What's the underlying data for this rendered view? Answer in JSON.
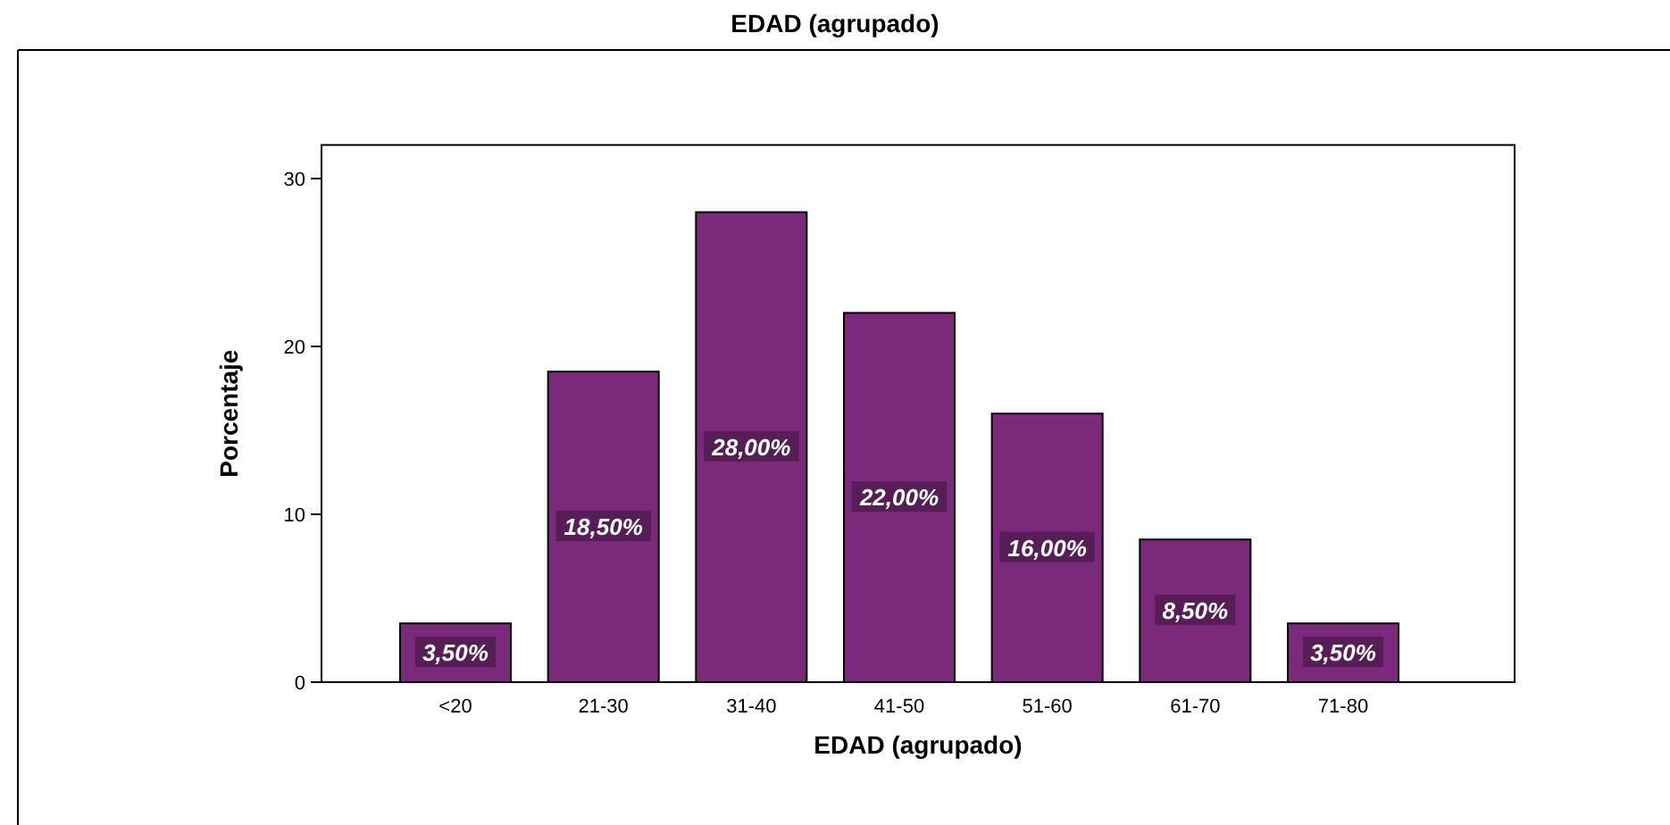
{
  "chart_data": {
    "type": "bar",
    "title": "EDAD (agrupado)",
    "xlabel": "EDAD (agrupado)",
    "ylabel": "Porcentaje",
    "categories": [
      "<20",
      "21-30",
      "31-40",
      "41-50",
      "51-60",
      "61-70",
      "71-80"
    ],
    "values": [
      3.5,
      18.5,
      28.0,
      22.0,
      16.0,
      8.5,
      3.5
    ],
    "value_labels": [
      "3,50%",
      "18,50%",
      "28,00%",
      "22,00%",
      "16,00%",
      "8,50%",
      "3,50%"
    ],
    "color": "#7b2a7b",
    "ylim": [
      0,
      32
    ],
    "yticks": [
      0,
      10,
      20,
      30
    ],
    "grid": false
  }
}
